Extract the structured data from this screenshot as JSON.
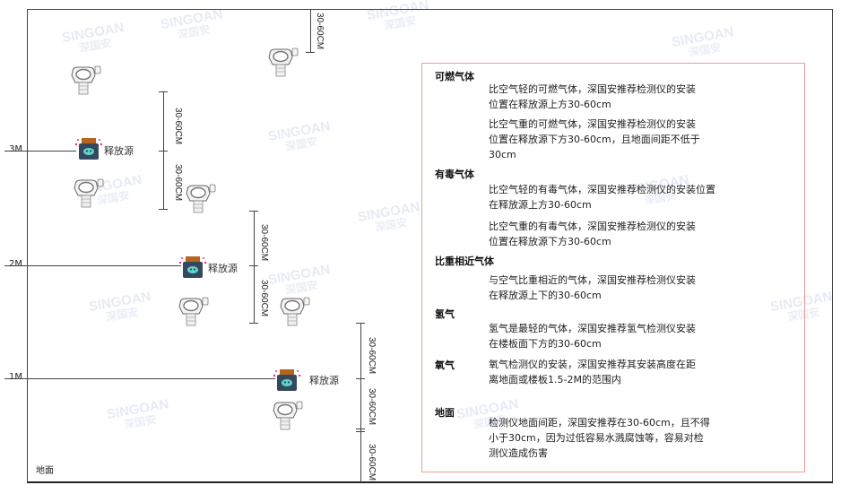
{
  "watermark": {
    "brand": "SINGOAN",
    "cn": "深国安"
  },
  "levels": {
    "m3": "3M",
    "m2": "2M",
    "m1": "1M",
    "ground": "地面"
  },
  "source_label": "释放源",
  "dimension_label": "30-60CM",
  "panel": {
    "sections": [
      {
        "heading": "可燃气体",
        "paragraphs": [
          [
            "比空气轻的可燃气体，深国安推荐检测仪的安装",
            "位置在释放源上方30-60cm"
          ],
          [
            "比空气重的可燃气体，深国安推荐检测仪的安装",
            "位置在释放源下方30-60cm，且地面间距不低于",
            "30cm"
          ]
        ]
      },
      {
        "heading": "有毒气体",
        "paragraphs": [
          [
            "比空气轻的有毒气体，深国安推荐检测仪的安装位置",
            "在释放源上方30-60cm"
          ],
          [
            "比空气重的有毒气体，深国安推荐检测仪的安装",
            "位置在释放源下方30-60cm"
          ]
        ]
      },
      {
        "heading": "比重相近气体",
        "paragraphs": [
          [
            "与空气比重相近的气体，深国安推荐检测仪安装",
            "在释放源上下的30-60cm"
          ]
        ]
      },
      {
        "heading": "氢气",
        "paragraphs": [
          [
            "氢气是最轻的气体，深国安推荐氢气检测仪安装",
            "在楼板面下方的30-60cm"
          ]
        ]
      },
      {
        "heading": "氧气",
        "paragraphs": [
          [
            "氧气检测仪的安装，深国安推荐其安装高度在距",
            "离地面或楼板1.5-2M的范围内"
          ]
        ]
      },
      {
        "heading": "地面",
        "paragraphs": [
          [
            "检测仪地面间距，深国安推荐在30-60cm，且不得",
            "小于30cm，因为过低容易水溅腐蚀等，容易对检",
            "测仪造成伤害"
          ]
        ]
      }
    ]
  },
  "colors": {
    "panel_border": "#f19a9a",
    "source_body": "#34495e",
    "source_cap": "#b5651d",
    "source_face": "#5fd3c8"
  }
}
